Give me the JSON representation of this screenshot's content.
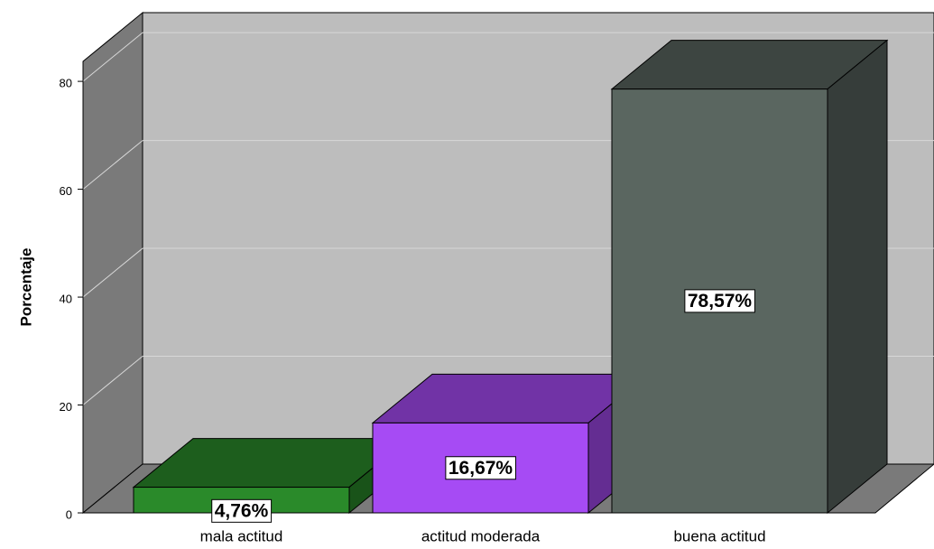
{
  "chart_data": {
    "type": "bar3d",
    "y_label": "Porcentaje",
    "categories": [
      "mala actitud",
      "actitud moderada",
      "buena actitud"
    ],
    "values": [
      4.76,
      16.67,
      78.57
    ],
    "value_labels": [
      "4,76%",
      "16,67%",
      "78,57%"
    ],
    "colors": [
      "#2a8a2a",
      "#a64bf4",
      "#5a6660"
    ],
    "ylim": [
      0,
      83.7
    ],
    "yticks": [
      0,
      20,
      40,
      60,
      80
    ],
    "grid": true
  }
}
